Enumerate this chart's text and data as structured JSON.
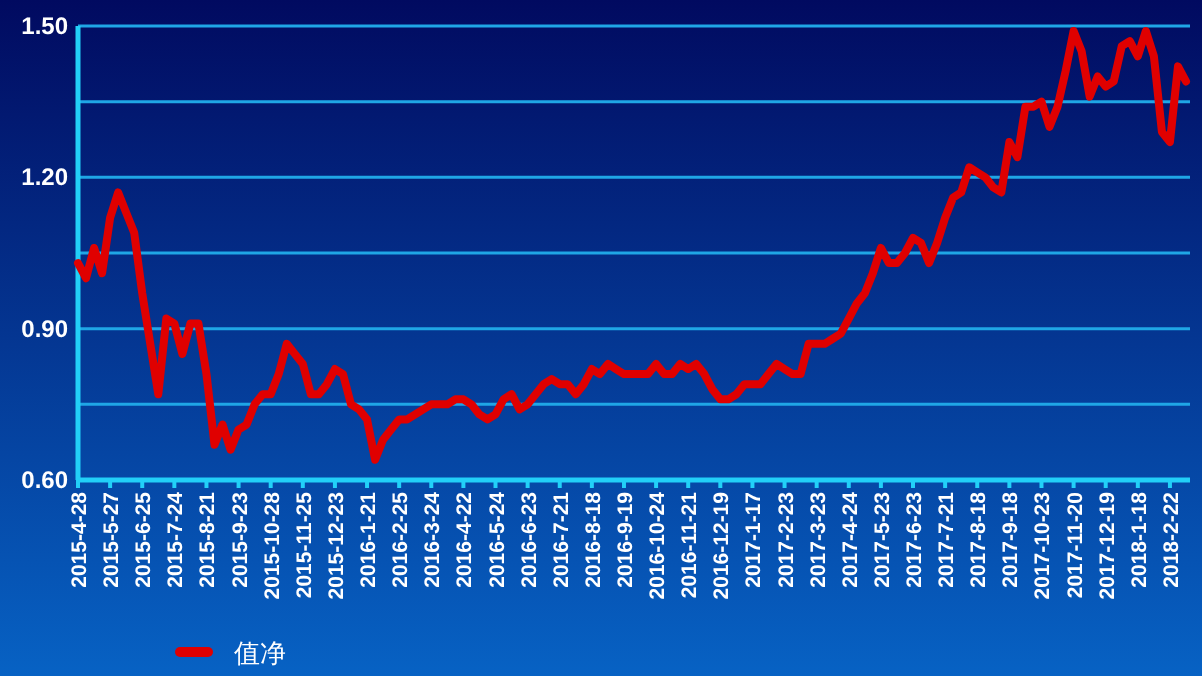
{
  "chart_data": {
    "type": "line",
    "categories": [
      "2015-4-28",
      null,
      null,
      null,
      "2015-5-27",
      null,
      null,
      null,
      "2015-6-25",
      null,
      null,
      null,
      "2015-7-24",
      null,
      null,
      null,
      "2015-8-21",
      null,
      null,
      null,
      "2015-9-23",
      null,
      null,
      null,
      "2015-10-28",
      null,
      null,
      null,
      "2015-11-25",
      null,
      null,
      null,
      "2015-12-23",
      null,
      null,
      null,
      "2016-1-21",
      null,
      null,
      null,
      "2016-2-25",
      null,
      null,
      null,
      "2016-3-24",
      null,
      null,
      null,
      "2016-4-22",
      null,
      null,
      null,
      "2016-5-24",
      null,
      null,
      null,
      "2016-6-23",
      null,
      null,
      null,
      "2016-7-21",
      null,
      null,
      null,
      "2016-8-18",
      null,
      null,
      null,
      "2016-9-19",
      null,
      null,
      null,
      "2016-10-24",
      null,
      null,
      null,
      "2016-11-21",
      null,
      null,
      null,
      "2016-12-19",
      null,
      null,
      null,
      "2017-1-17",
      null,
      null,
      null,
      "2017-2-23",
      null,
      null,
      null,
      "2017-3-23",
      null,
      null,
      null,
      "2017-4-24",
      null,
      null,
      null,
      "2017-5-23",
      null,
      null,
      null,
      "2017-6-23",
      null,
      null,
      null,
      "2017-7-21",
      null,
      null,
      null,
      "2017-8-18",
      null,
      null,
      null,
      "2017-9-18",
      null,
      null,
      null,
      "2017-10-23",
      null,
      null,
      null,
      "2017-11-20",
      null,
      null,
      null,
      "2017-12-19",
      null,
      null,
      null,
      "2018-1-18",
      null,
      null,
      null,
      "2018-2-22",
      null,
      null
    ],
    "series": [
      {
        "name": "值净",
        "color": "#e00000",
        "values": [
          1.03,
          1.0,
          1.06,
          1.01,
          1.12,
          1.17,
          1.13,
          1.09,
          0.97,
          0.87,
          0.77,
          0.92,
          0.91,
          0.85,
          0.91,
          0.91,
          0.81,
          0.67,
          0.71,
          0.66,
          0.7,
          0.71,
          0.75,
          0.77,
          0.77,
          0.81,
          0.87,
          0.85,
          0.83,
          0.77,
          0.77,
          0.79,
          0.82,
          0.81,
          0.75,
          0.74,
          0.72,
          0.64,
          0.68,
          0.7,
          0.72,
          0.72,
          0.73,
          0.74,
          0.75,
          0.75,
          0.75,
          0.76,
          0.76,
          0.75,
          0.73,
          0.72,
          0.73,
          0.76,
          0.77,
          0.74,
          0.75,
          0.77,
          0.79,
          0.8,
          0.79,
          0.79,
          0.77,
          0.79,
          0.82,
          0.81,
          0.83,
          0.82,
          0.81,
          0.81,
          0.81,
          0.81,
          0.83,
          0.81,
          0.81,
          0.83,
          0.82,
          0.83,
          0.81,
          0.78,
          0.76,
          0.76,
          0.77,
          0.79,
          0.79,
          0.79,
          0.81,
          0.83,
          0.82,
          0.81,
          0.81,
          0.87,
          0.87,
          0.87,
          0.88,
          0.89,
          0.92,
          0.95,
          0.97,
          1.01,
          1.06,
          1.03,
          1.03,
          1.05,
          1.08,
          1.07,
          1.03,
          1.07,
          1.12,
          1.16,
          1.17,
          1.22,
          1.21,
          1.2,
          1.18,
          1.17,
          1.27,
          1.24,
          1.34,
          1.34,
          1.35,
          1.3,
          1.34,
          1.41,
          1.49,
          1.45,
          1.36,
          1.4,
          1.38,
          1.39,
          1.46,
          1.47,
          1.44,
          1.49,
          1.44,
          1.29,
          1.27,
          1.42,
          1.39
        ]
      }
    ],
    "ylim": [
      0.6,
      1.5
    ],
    "yticks": [
      {
        "value": 0.6,
        "label": "0.60"
      },
      {
        "value": 0.75,
        "label": null
      },
      {
        "value": 0.9,
        "label": "0.90"
      },
      {
        "value": 1.05,
        "label": null
      },
      {
        "value": 1.2,
        "label": "1.20"
      },
      {
        "value": 1.35,
        "label": null
      },
      {
        "value": 1.5,
        "label": "1.50"
      }
    ],
    "grid": "y",
    "legend": "bottom left"
  }
}
